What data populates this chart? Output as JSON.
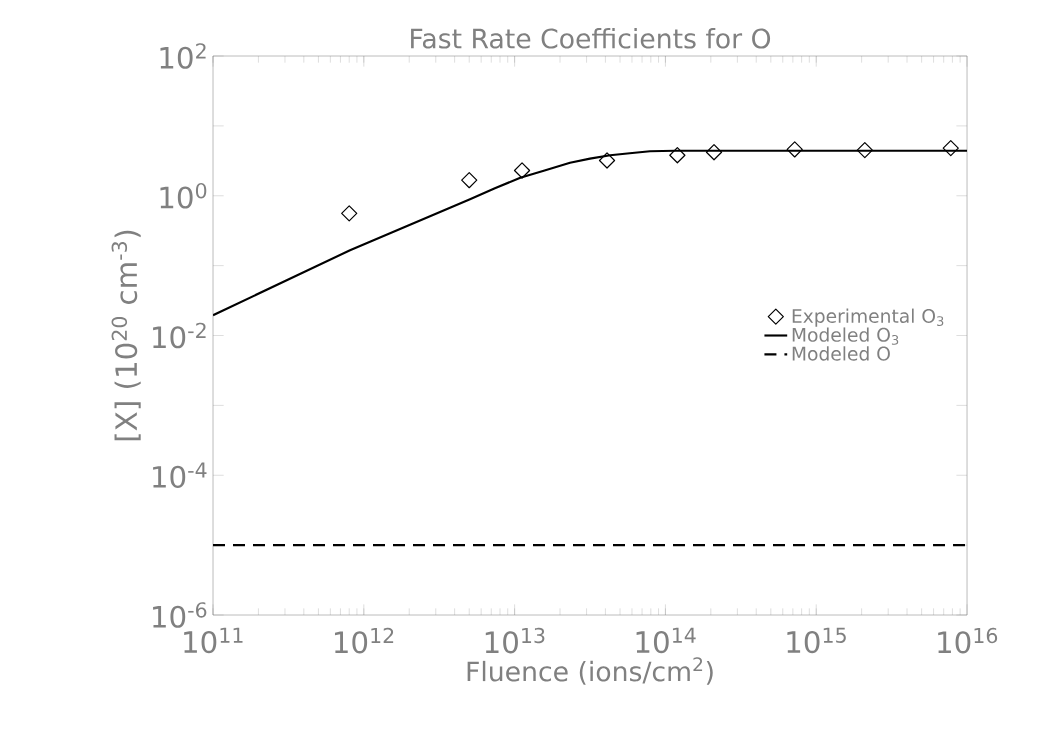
{
  "chart_data": {
    "type": "line",
    "title": "Fast Rate Coefficients for O",
    "xlabel": "Fluence (ions/cm$^{2}$)",
    "ylabel": "[X] (10$^{20}$ cm$^{-3}$)",
    "log": "xy",
    "legend": "right",
    "xlim": [
      100000000000.0,
      1e+16
    ],
    "ylim": [
      1e-06,
      100
    ],
    "xticks": [
      {
        "value": 100000000000.0,
        "label": "10$^{11}$"
      },
      {
        "value": 1000000000000.0,
        "label": "10$^{12}$"
      },
      {
        "value": 10000000000000.0,
        "label": "10$^{13}$"
      },
      {
        "value": 100000000000000.0,
        "label": "10$^{14}$"
      },
      {
        "value": 1000000000000000.0,
        "label": "10$^{15}$"
      },
      {
        "value": 1e+16,
        "label": "10$^{16}$"
      }
    ],
    "yticks": [
      {
        "value": 1e-06,
        "label": "10$^{-6}$"
      },
      {
        "value": 1e-05,
        "label": null
      },
      {
        "value": 0.0001,
        "label": "10$^{-4}$"
      },
      {
        "value": 0.001,
        "label": null
      },
      {
        "value": 0.01,
        "label": "10$^{-2}$"
      },
      {
        "value": 0.1,
        "label": null
      },
      {
        "value": 1,
        "label": "10$^{0}$"
      },
      {
        "value": 10,
        "label": null
      },
      {
        "value": 100,
        "label": "10$^{2}$"
      }
    ],
    "series": [
      {
        "name": "Experimental O$_{3}$",
        "type": "scatter",
        "marker": "diamond",
        "color": "#000000",
        "x": [
          800000000000.0,
          5000000000000.0,
          11200000000000.0,
          41000000000000.0,
          120000000000000.0,
          210000000000000.0,
          720000000000000.0,
          2100000000000000.0,
          7800000000000000.0
        ],
        "values": [
          0.56,
          1.67,
          2.3,
          3.2,
          3.8,
          4.2,
          4.6,
          4.5,
          4.8
        ]
      },
      {
        "name": "Modeled O$_{3}$",
        "line_style": "solid",
        "color": "#000000",
        "x": [
          100000000000.0,
          810000000000.0,
          5060000000000.0,
          7400000000000.0,
          10900000000000.0,
          15800000000000.0,
          23300000000000.0,
          31600000000000.0,
          43000000000000.0,
          58000000000000.0,
          79000000000000.0,
          116000000000000.0,
          1e+16
        ],
        "values": [
          0.0195,
          0.166,
          0.89,
          1.28,
          1.81,
          2.3,
          2.97,
          3.4,
          3.8,
          4.05,
          4.33,
          4.4,
          4.4
        ]
      },
      {
        "name": "Modeled O",
        "line_style": "dashed",
        "color": "#000000",
        "x": [
          100000000000.0,
          1e+16
        ],
        "values": [
          1e-05,
          1e-05
        ]
      }
    ]
  }
}
